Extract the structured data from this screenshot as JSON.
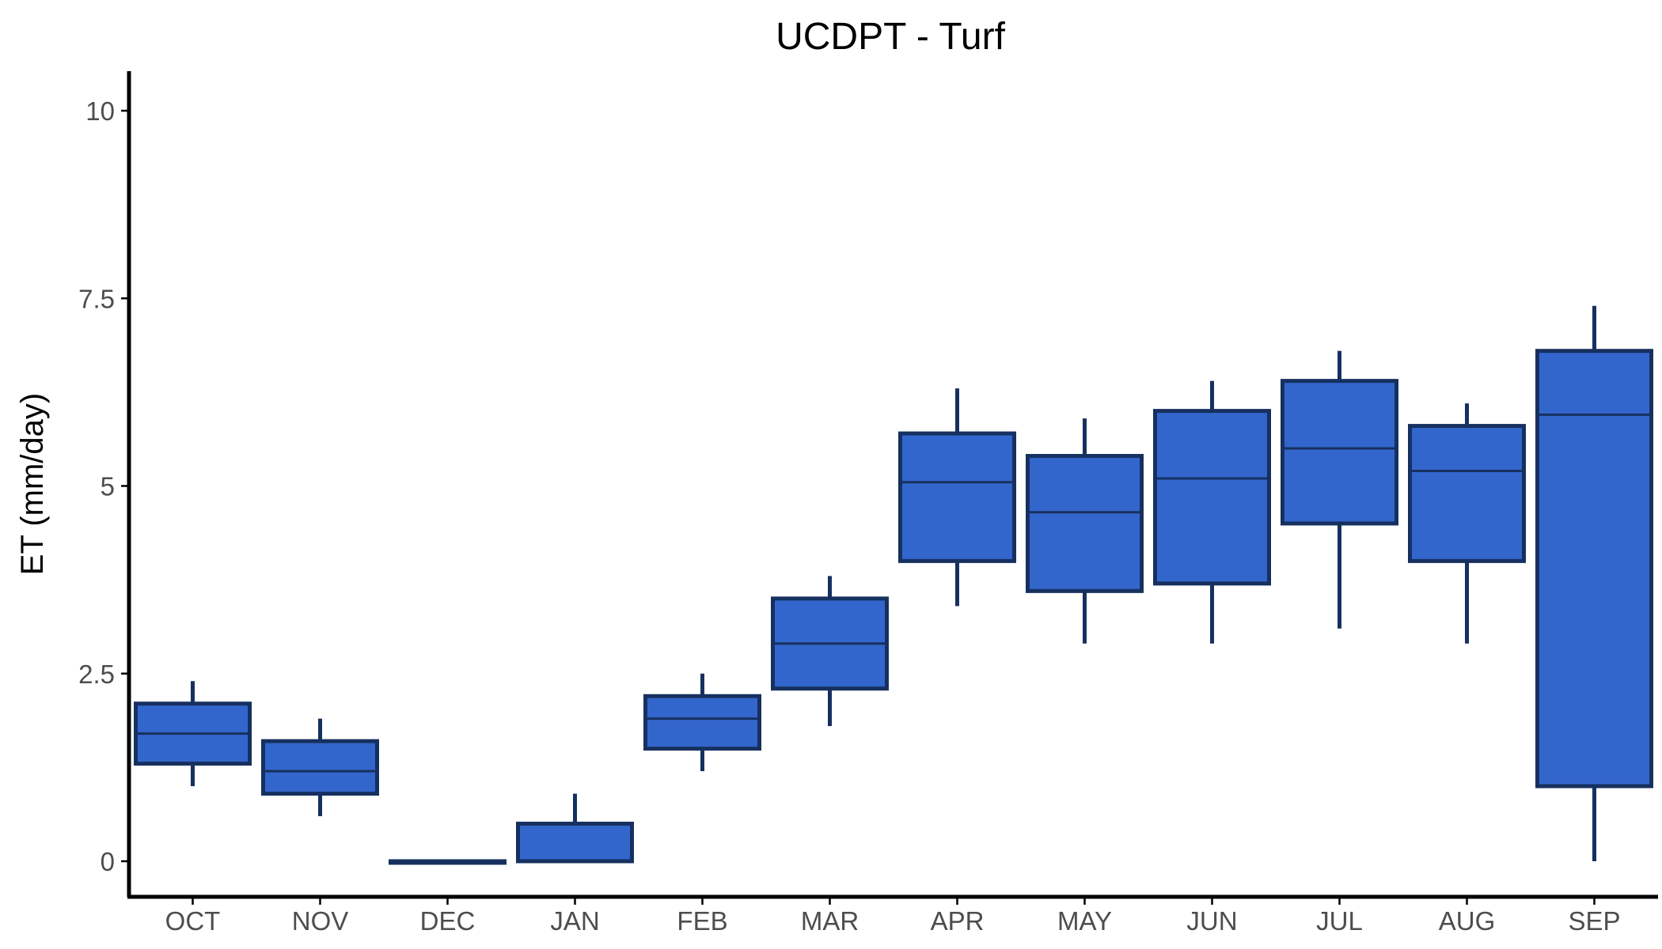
{
  "chart_data": {
    "type": "boxplot",
    "title": "UCDPT - Turf",
    "xlabel": "",
    "ylabel": "ET (mm/day)",
    "ylim": [
      -0.5,
      10.5
    ],
    "yticks": [
      0,
      2.5,
      5,
      7.5,
      10
    ],
    "ytick_labels": [
      "0",
      "2.5",
      "5",
      "7.5",
      "10"
    ],
    "grid": false,
    "legend": "none",
    "categories": [
      "OCT",
      "NOV",
      "DEC",
      "JAN",
      "FEB",
      "MAR",
      "APR",
      "MAY",
      "JUN",
      "JUL",
      "AUG",
      "SEP"
    ],
    "boxes": [
      {
        "category": "OCT",
        "min": 1.0,
        "q1": 1.3,
        "median": 1.7,
        "q3": 2.1,
        "max": 2.4
      },
      {
        "category": "NOV",
        "min": 0.6,
        "q1": 0.9,
        "median": 1.2,
        "q3": 1.6,
        "max": 1.9
      },
      {
        "category": "DEC",
        "min": 0.0,
        "q1": 0.0,
        "median": 0.0,
        "q3": 0.0,
        "max": 0.0
      },
      {
        "category": "JAN",
        "min": 0.0,
        "q1": 0.0,
        "median": 0.0,
        "q3": 0.5,
        "max": 0.9
      },
      {
        "category": "FEB",
        "min": 1.2,
        "q1": 1.5,
        "median": 1.9,
        "q3": 2.2,
        "max": 2.5
      },
      {
        "category": "MAR",
        "min": 1.8,
        "q1": 2.3,
        "median": 2.9,
        "q3": 3.5,
        "max": 3.8
      },
      {
        "category": "APR",
        "min": 3.4,
        "q1": 4.0,
        "median": 5.05,
        "q3": 5.7,
        "max": 6.3
      },
      {
        "category": "MAY",
        "min": 2.9,
        "q1": 3.6,
        "median": 4.65,
        "q3": 5.4,
        "max": 5.9
      },
      {
        "category": "JUN",
        "min": 2.9,
        "q1": 3.7,
        "median": 5.1,
        "q3": 6.0,
        "max": 6.4
      },
      {
        "category": "JUL",
        "min": 3.1,
        "q1": 4.5,
        "median": 5.5,
        "q3": 6.4,
        "max": 6.8
      },
      {
        "category": "AUG",
        "min": 2.9,
        "q1": 4.0,
        "median": 5.2,
        "q3": 5.8,
        "max": 6.1
      },
      {
        "category": "SEP",
        "min": 0.0,
        "q1": 1.0,
        "median": 5.95,
        "q3": 6.8,
        "max": 7.4
      }
    ],
    "colors": {
      "box_fill": "#3366cc",
      "box_stroke": "#16305f",
      "axis": "#000000",
      "tick_text": "#4d4d4d",
      "title_text": "#000000"
    }
  }
}
